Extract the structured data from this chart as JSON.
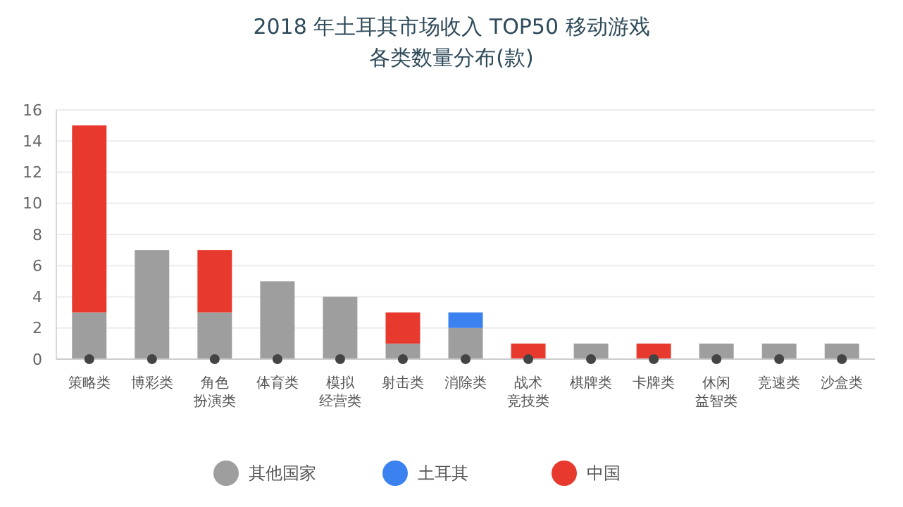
{
  "chart_data": {
    "type": "bar",
    "title": "2018 年土耳其市场收入 TOP50 移动游戏",
    "subtitle": "各类数量分布(款)",
    "categories": [
      "策略类",
      "博彩类",
      "角色扮演类",
      "体育类",
      "模拟经营类",
      "射击类",
      "消除类",
      "战术竞技类",
      "棋牌类",
      "卡牌类",
      "休闲益智类",
      "竞速类",
      "沙盒类"
    ],
    "series": [
      {
        "name": "其他国家",
        "color": "#9e9e9e",
        "values": [
          3,
          7,
          3,
          5,
          4,
          1,
          2,
          0,
          1,
          0,
          1,
          1,
          1
        ]
      },
      {
        "name": "土耳其",
        "color": "#3b82f0",
        "values": [
          0,
          0,
          0,
          0,
          0,
          0,
          1,
          0,
          0,
          0,
          0,
          0,
          0
        ]
      },
      {
        "name": "中国",
        "color": "#e8392e",
        "values": [
          12,
          0,
          4,
          0,
          0,
          2,
          0,
          1,
          0,
          1,
          0,
          0,
          0
        ]
      }
    ],
    "stacked": true,
    "ylim": [
      0,
      16
    ],
    "yticks": [
      0,
      2,
      4,
      6,
      8,
      10,
      12,
      14,
      16
    ],
    "grid": "y",
    "legend": "bottom"
  }
}
